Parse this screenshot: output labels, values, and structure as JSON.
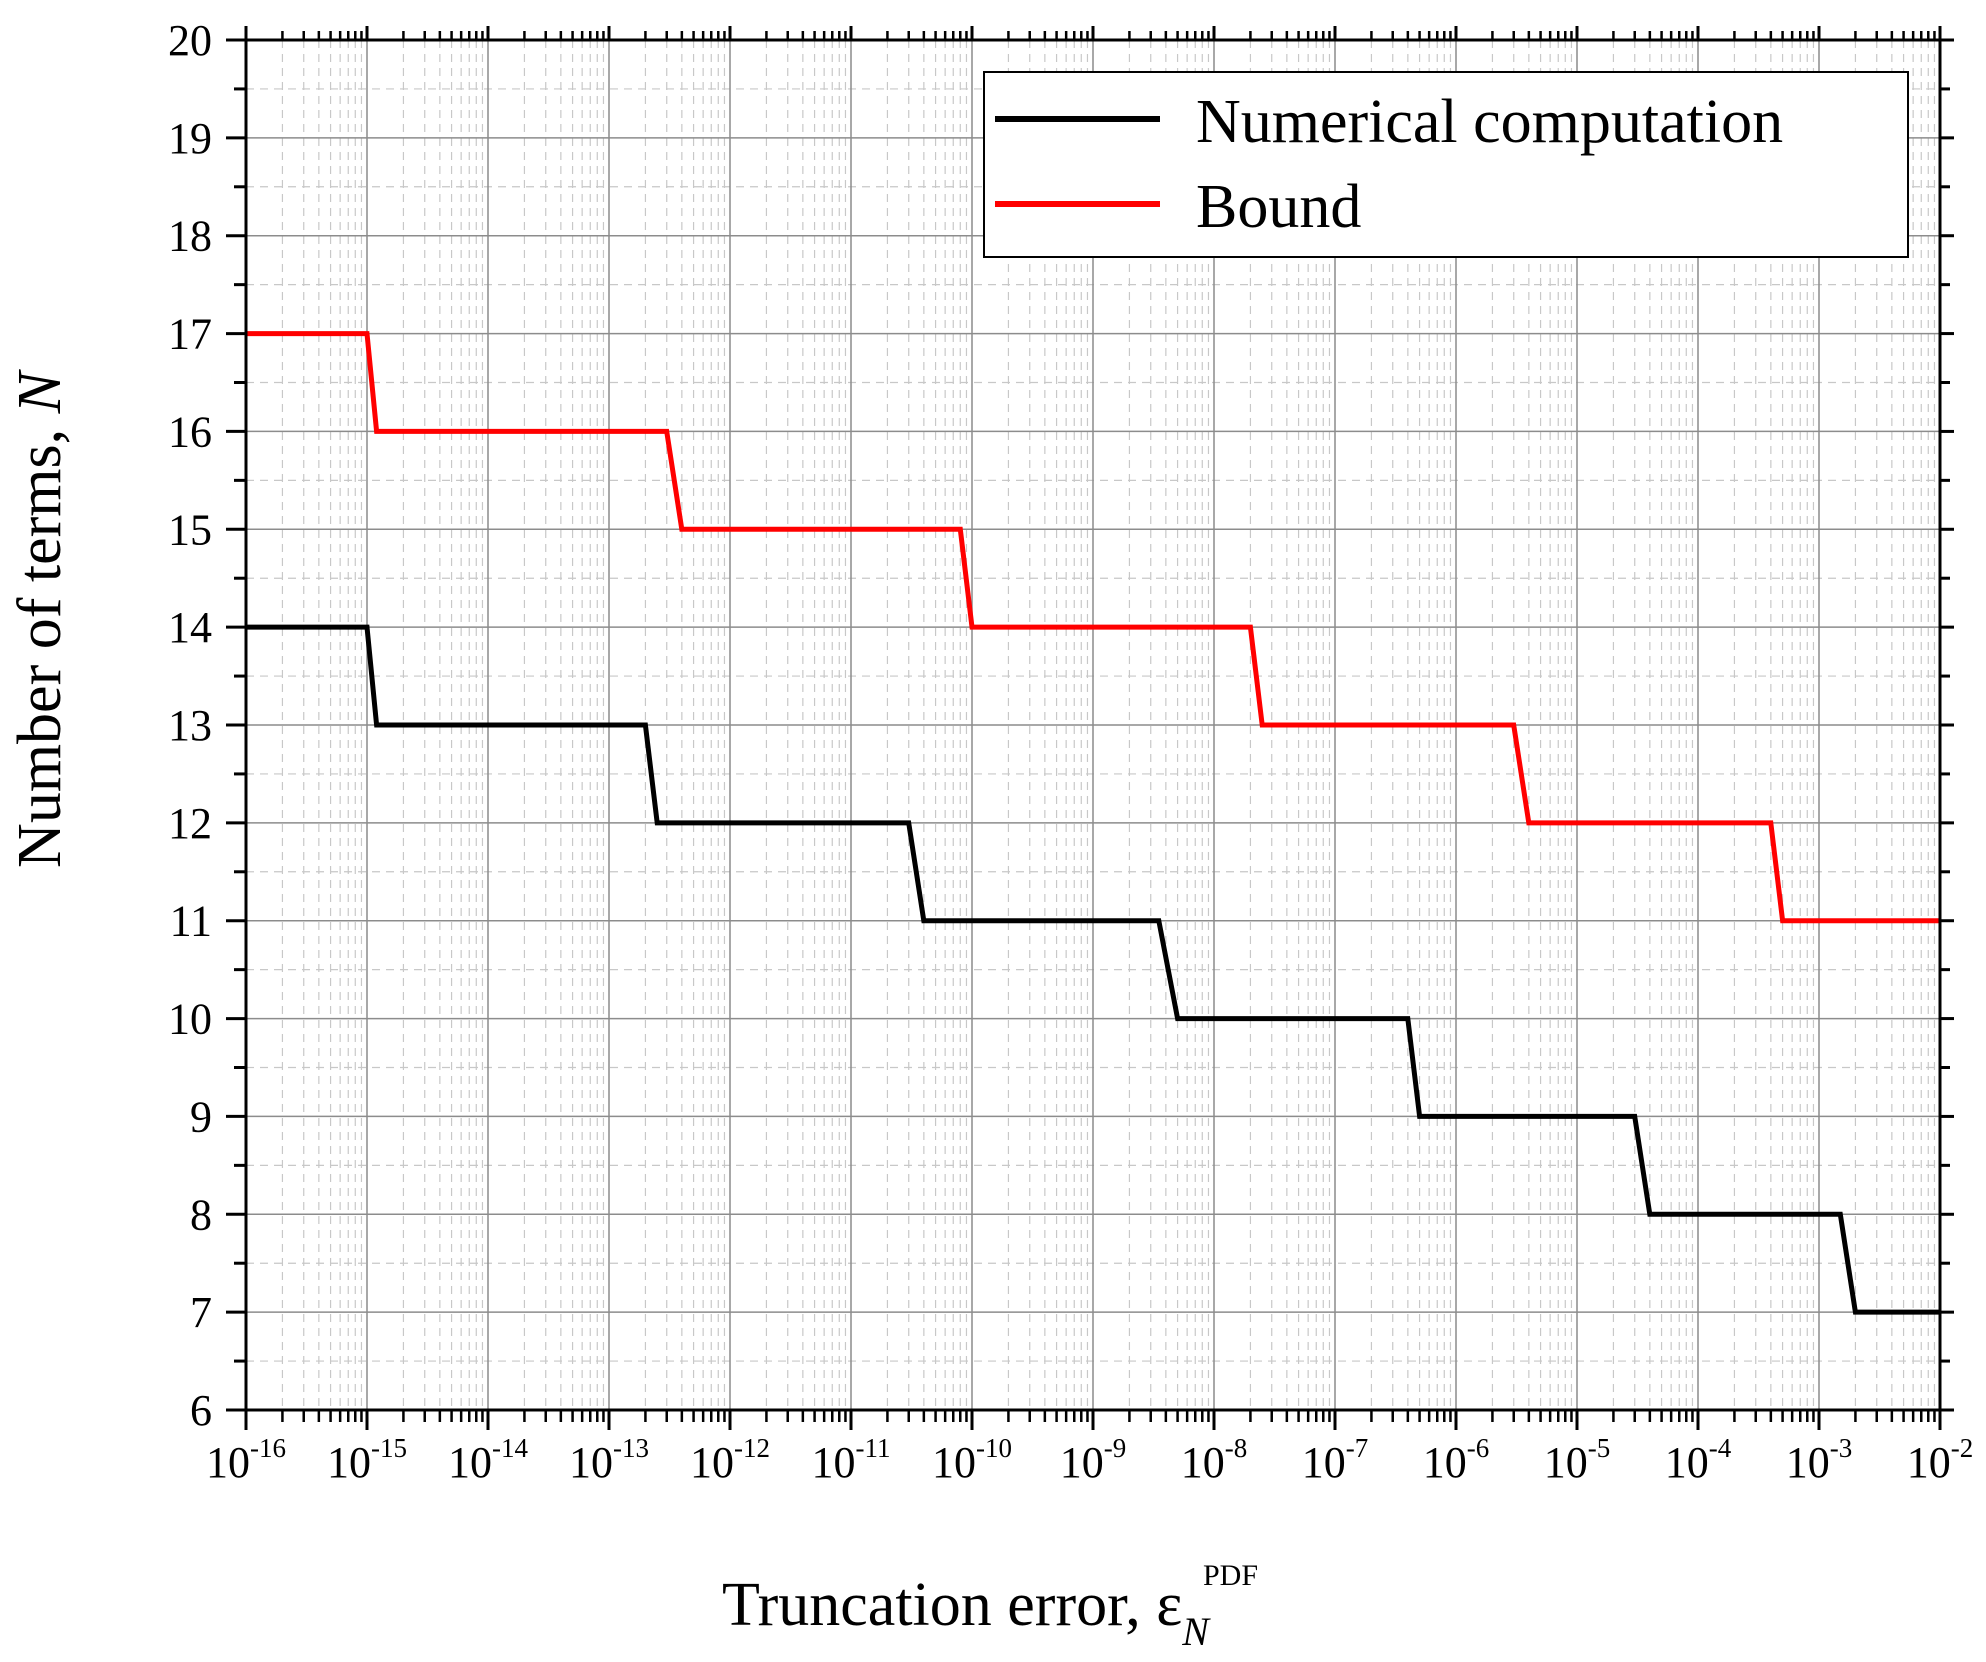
{
  "chart_data": {
    "type": "line",
    "x_scale": "log",
    "xlim": [
      1e-16,
      0.01
    ],
    "ylim": [
      6,
      20
    ],
    "grid": true,
    "legend_position": "top-right",
    "xlabel": {
      "text": "Truncation error, ε",
      "subscript": "N",
      "superscript": "PDF"
    },
    "ylabel": {
      "text": "Number of terms, ",
      "italic": "N"
    },
    "y_ticks": [
      "6",
      "7",
      "8",
      "9",
      "10",
      "11",
      "12",
      "13",
      "14",
      "15",
      "16",
      "17",
      "18",
      "19",
      "20"
    ],
    "x_ticks": [
      {
        "base": "10",
        "exp": "-16"
      },
      {
        "base": "10",
        "exp": "-15"
      },
      {
        "base": "10",
        "exp": "-14"
      },
      {
        "base": "10",
        "exp": "-13"
      },
      {
        "base": "10",
        "exp": "-12"
      },
      {
        "base": "10",
        "exp": "-11"
      },
      {
        "base": "10",
        "exp": "-10"
      },
      {
        "base": "10",
        "exp": "-9"
      },
      {
        "base": "10",
        "exp": "-8"
      },
      {
        "base": "10",
        "exp": "-7"
      },
      {
        "base": "10",
        "exp": "-6"
      },
      {
        "base": "10",
        "exp": "-5"
      },
      {
        "base": "10",
        "exp": "-4"
      },
      {
        "base": "10",
        "exp": "-3"
      },
      {
        "base": "10",
        "exp": "-2"
      }
    ],
    "series": [
      {
        "name": "Numerical computation",
        "color": "#000000",
        "steps": [
          {
            "x_from": 1e-16,
            "x_to": 1e-15,
            "y": 14
          },
          {
            "x_from": 1.2e-15,
            "x_to": 2e-13,
            "y": 13
          },
          {
            "x_from": 2.5e-13,
            "x_to": 3e-11,
            "y": 12
          },
          {
            "x_from": 4e-11,
            "x_to": 3.5e-09,
            "y": 11
          },
          {
            "x_from": 5e-09,
            "x_to": 4e-07,
            "y": 10
          },
          {
            "x_from": 5e-07,
            "x_to": 3e-05,
            "y": 9
          },
          {
            "x_from": 4e-05,
            "x_to": 0.0015,
            "y": 8
          },
          {
            "x_from": 0.002,
            "x_to": 0.01,
            "y": 7
          }
        ]
      },
      {
        "name": "Bound",
        "color": "#ff0000",
        "steps": [
          {
            "x_from": 1e-16,
            "x_to": 1e-15,
            "y": 17
          },
          {
            "x_from": 1.2e-15,
            "x_to": 3e-13,
            "y": 16
          },
          {
            "x_from": 4e-13,
            "x_to": 8e-11,
            "y": 15
          },
          {
            "x_from": 1e-10,
            "x_to": 2e-08,
            "y": 14
          },
          {
            "x_from": 2.5e-08,
            "x_to": 3e-06,
            "y": 13
          },
          {
            "x_from": 4e-06,
            "x_to": 0.0004,
            "y": 12
          },
          {
            "x_from": 0.0005,
            "x_to": 0.01,
            "y": 11
          }
        ]
      }
    ]
  }
}
